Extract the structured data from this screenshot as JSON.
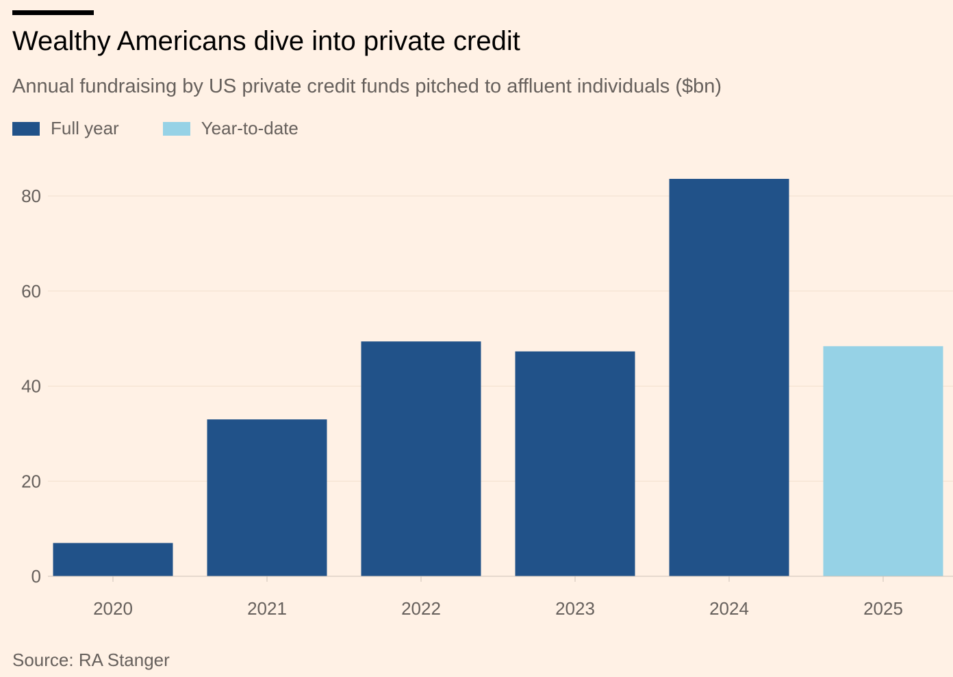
{
  "chart_data": {
    "type": "bar",
    "title": "Wealthy Americans dive into private credit",
    "subtitle": "Annual fundraising by US private credit funds pitched to affluent individuals ($bn)",
    "categories": [
      "2020",
      "2021",
      "2022",
      "2023",
      "2024",
      "2025"
    ],
    "values": [
      7,
      33,
      49.4,
      47.3,
      83.6,
      48.4
    ],
    "series_type": [
      "Full year",
      "Full year",
      "Full year",
      "Full year",
      "Full year",
      "Year-to-date"
    ],
    "legend": [
      {
        "label": "Full year",
        "color": "#215289"
      },
      {
        "label": "Year-to-date",
        "color": "#96D2E6"
      }
    ],
    "legend_placement": "top-left",
    "yticks": [
      0,
      20,
      40,
      60,
      80
    ],
    "ylim": [
      0,
      80
    ],
    "xlabel": "",
    "ylabel": "",
    "grid": true,
    "source": "Source: RA Stanger"
  }
}
